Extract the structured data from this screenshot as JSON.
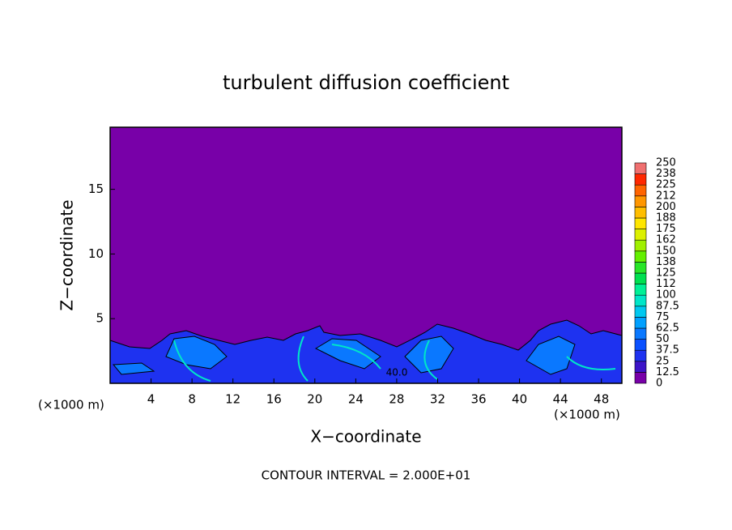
{
  "chart_data": {
    "type": "contour",
    "title": "turbulent diffusion coefficient",
    "x_label": "X−coordinate",
    "y_label": "Z−coordinate",
    "x_unit_left": "(×1000 m)",
    "x_unit_right": "(×1000 m)",
    "footnote": "CONTOUR INTERVAL = 2.000E+01",
    "contour_label": "40.0",
    "xlim": [
      0,
      50
    ],
    "xticks": [
      4,
      8,
      12,
      16,
      20,
      24,
      28,
      32,
      36,
      40,
      44,
      48
    ],
    "ylim": [
      0,
      19.8
    ],
    "yticks": [
      5,
      10,
      15
    ],
    "colorbar": {
      "levels": [
        0,
        12.5,
        25,
        37.5,
        50,
        62.5,
        75,
        87.5,
        100,
        112,
        125,
        138,
        150,
        162,
        175,
        188,
        200,
        212,
        225,
        238,
        250
      ],
      "colors": [
        "#7800a8",
        "#3c14c8",
        "#1e32f0",
        "#0a50ff",
        "#0a78ff",
        "#00a0ff",
        "#00c8f0",
        "#00e6c8",
        "#00f096",
        "#00e050",
        "#28e628",
        "#64f000",
        "#a0f000",
        "#dcf000",
        "#ffe600",
        "#ffbe00",
        "#ff9600",
        "#ff6400",
        "#ff2800",
        "#f07070"
      ]
    }
  }
}
